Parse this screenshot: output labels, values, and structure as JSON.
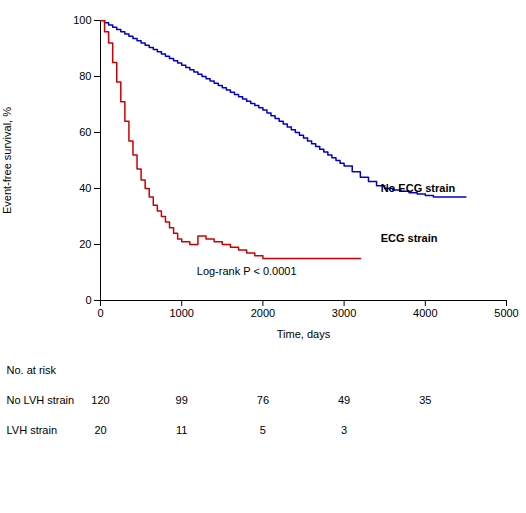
{
  "chart_data": {
    "type": "step",
    "xlabel": "Time, days",
    "ylabel": "Event-free survival, %",
    "xlim": [
      0,
      5000
    ],
    "ylim": [
      0,
      100
    ],
    "xticks": [
      0,
      1000,
      2000,
      3000,
      4000,
      5000
    ],
    "yticks": [
      0,
      20,
      40,
      60,
      80,
      100
    ],
    "series": [
      {
        "name": "No ECG strain",
        "color": "#0000CD",
        "label_x": 3450,
        "label_y": 40,
        "x": [
          0,
          50,
          100,
          150,
          200,
          250,
          300,
          350,
          400,
          450,
          500,
          550,
          600,
          650,
          700,
          750,
          800,
          850,
          900,
          950,
          1000,
          1050,
          1100,
          1150,
          1200,
          1250,
          1300,
          1350,
          1400,
          1450,
          1500,
          1550,
          1600,
          1650,
          1700,
          1750,
          1800,
          1850,
          1900,
          1950,
          2000,
          2050,
          2100,
          2150,
          2200,
          2250,
          2300,
          2350,
          2400,
          2450,
          2500,
          2550,
          2600,
          2650,
          2700,
          2750,
          2800,
          2850,
          2900,
          2950,
          3000,
          3100,
          3200,
          3300,
          3400,
          3500,
          3600,
          3700,
          3800,
          3900,
          4000,
          4100,
          4200,
          4300,
          4400,
          4500
        ],
        "values": [
          100,
          99.2,
          98.4,
          97.6,
          96.8,
          96.0,
          95.2,
          94.4,
          93.6,
          92.8,
          92.0,
          91.2,
          90.4,
          89.6,
          88.8,
          88.0,
          87.2,
          86.4,
          85.6,
          84.8,
          84.0,
          83.2,
          82.4,
          81.6,
          80.8,
          80.0,
          79.2,
          78.4,
          77.6,
          76.8,
          76.0,
          75.2,
          74.4,
          73.6,
          72.8,
          72.0,
          71.2,
          70.4,
          69.6,
          68.8,
          68.0,
          67.0,
          66.0,
          65.0,
          64.0,
          63.0,
          62.0,
          61.0,
          60.0,
          59.0,
          58.0,
          57.0,
          56.0,
          55.0,
          54.0,
          53.0,
          52.0,
          51.0,
          50.0,
          49.0,
          48.0,
          46.0,
          44.0,
          42.5,
          41.0,
          40.0,
          39.5,
          39.0,
          38.5,
          38.0,
          37.5,
          37.0,
          37.0,
          37.0,
          37.0,
          37.0
        ]
      },
      {
        "name": "ECG strain",
        "color": "#CC0000",
        "label_x": 3450,
        "label_y": 22,
        "x": [
          0,
          50,
          100,
          150,
          200,
          250,
          300,
          350,
          400,
          450,
          500,
          550,
          600,
          650,
          700,
          750,
          800,
          850,
          900,
          950,
          1000,
          1100,
          1200,
          1300,
          1400,
          1500,
          1600,
          1700,
          1800,
          1900,
          2000,
          2100,
          2200,
          2300,
          2400,
          2500,
          2600,
          2700,
          2800,
          2900,
          3000,
          3100,
          3200
        ],
        "values": [
          100,
          96,
          92,
          85,
          78,
          71,
          64,
          57,
          52,
          47,
          43,
          40,
          37,
          34,
          32,
          30,
          28,
          26,
          24,
          22,
          21,
          20,
          23,
          22,
          21,
          20,
          19,
          18,
          17,
          16,
          15,
          15,
          15,
          15,
          15,
          15,
          15,
          15,
          15,
          15,
          15,
          15,
          15
        ]
      }
    ],
    "annotations": [
      {
        "text": "Log-rank P < 0.0001",
        "x": 1800,
        "y": 7
      }
    ],
    "risk_table": {
      "title": "No. at risk",
      "x": [
        0,
        1000,
        2000,
        3000,
        4000
      ],
      "rows": [
        {
          "label": "No LVH strain",
          "values": [
            120,
            99,
            76,
            49,
            35
          ]
        },
        {
          "label": "LVH strain",
          "values": [
            20,
            11,
            5,
            3,
            null
          ]
        }
      ]
    }
  }
}
